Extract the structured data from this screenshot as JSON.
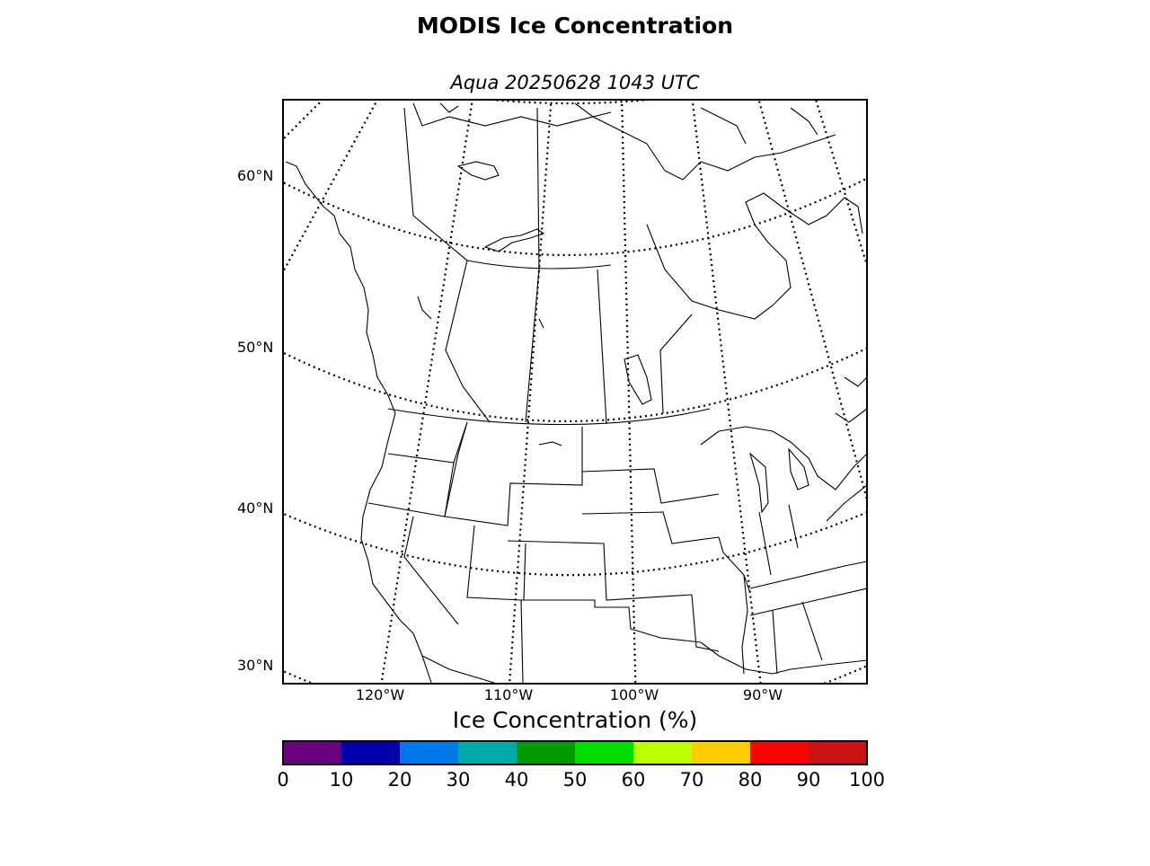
{
  "title": "MODIS Ice Concentration",
  "subtitle": "Aqua 20250628 1043 UTC",
  "map": {
    "lat_labels": [
      "60°N",
      "50°N",
      "40°N",
      "30°N"
    ],
    "lon_labels": [
      "120°W",
      "110°W",
      "100°W",
      "90°W"
    ],
    "projection": "polar stereographic / conic over North America",
    "ice_coverage": "none shown"
  },
  "colorbar": {
    "title": "Ice Concentration (%)",
    "ticks": [
      "0",
      "10",
      "20",
      "30",
      "40",
      "50",
      "60",
      "70",
      "80",
      "90",
      "100"
    ],
    "colors": [
      "#6a0080",
      "#0000aa",
      "#0077e6",
      "#00aaaa",
      "#009900",
      "#00dd00",
      "#bbff00",
      "#ffcc00",
      "#ff0000",
      "#cc1111"
    ]
  }
}
